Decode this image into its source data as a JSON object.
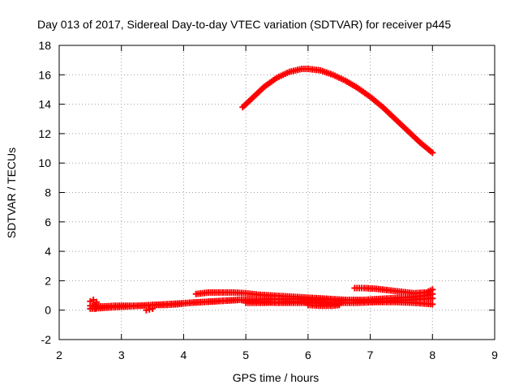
{
  "chart_data": {
    "type": "scatter",
    "title": "Day 013 of 2017, Sidereal Day-to-day VTEC variation (SDTVAR) for receiver p445",
    "xlabel": "GPS time / hours",
    "ylabel": "SDTVAR / TECUs",
    "xlim": [
      2,
      9
    ],
    "ylim": [
      -2,
      18
    ],
    "x_ticks": [
      "2",
      "3",
      "4",
      "5",
      "6",
      "7",
      "8",
      "9"
    ],
    "y_ticks": [
      "-2",
      "0",
      "2",
      "4",
      "6",
      "8",
      "10",
      "12",
      "14",
      "16",
      "18"
    ],
    "grid": true,
    "grid_style": "dotted",
    "marker": "plus",
    "series_color": "#ff0000",
    "series": [
      {
        "x": [
          4.95,
          5.1,
          5.3,
          5.5,
          5.7,
          5.9,
          6.0,
          6.2,
          6.4,
          6.6,
          6.8,
          7.0,
          7.2,
          7.4,
          7.6,
          7.8,
          8.0
        ],
        "y": [
          13.8,
          14.4,
          15.2,
          15.8,
          16.2,
          16.4,
          16.4,
          16.3,
          16.0,
          15.6,
          15.1,
          14.5,
          13.8,
          13.0,
          12.2,
          11.4,
          10.7
        ]
      },
      {
        "x": [
          2.5,
          2.7,
          2.9,
          3.1,
          3.3,
          3.5,
          3.7,
          3.9,
          4.1,
          4.3,
          4.5,
          4.7,
          4.9,
          5.1,
          5.3,
          5.5,
          5.7,
          5.9,
          6.1,
          6.3,
          6.5
        ],
        "y": [
          0.1,
          0.15,
          0.2,
          0.25,
          0.3,
          0.35,
          0.35,
          0.4,
          0.5,
          0.55,
          0.6,
          0.65,
          0.7,
          0.6,
          0.55,
          0.5,
          0.5,
          0.5,
          0.5,
          0.45,
          0.4
        ]
      },
      {
        "x": [
          2.5,
          2.7,
          2.9,
          3.1,
          3.3,
          3.5,
          3.7,
          3.9,
          4.1,
          4.3,
          4.5,
          4.7,
          4.9,
          5.1,
          5.3,
          5.5,
          5.7,
          5.9,
          6.1,
          6.3,
          6.5,
          6.7,
          6.9,
          7.1,
          7.3,
          7.5,
          7.7,
          7.9,
          8.0
        ],
        "y": [
          0.3,
          0.25,
          0.3,
          0.3,
          0.3,
          0.35,
          0.4,
          0.45,
          0.5,
          0.55,
          0.6,
          0.65,
          0.7,
          0.7,
          0.75,
          0.75,
          0.75,
          0.75,
          0.7,
          0.7,
          0.65,
          0.7,
          0.7,
          0.75,
          0.8,
          0.85,
          0.9,
          1.0,
          1.1
        ]
      },
      {
        "x": [
          4.2,
          4.4,
          4.6,
          4.8,
          5.0,
          5.2,
          5.4,
          5.6,
          5.8,
          6.0,
          6.2,
          6.4,
          6.6,
          6.8,
          7.0,
          7.2,
          7.4,
          7.6,
          7.8,
          8.0
        ],
        "y": [
          1.1,
          1.2,
          1.2,
          1.2,
          1.15,
          1.05,
          1.0,
          0.95,
          0.9,
          0.85,
          0.8,
          0.75,
          0.7,
          0.65,
          0.6,
          0.6,
          0.65,
          0.7,
          0.75,
          0.8
        ]
      },
      {
        "x": [
          6.75,
          6.9,
          7.1,
          7.3,
          7.5,
          7.7,
          7.9,
          8.0
        ],
        "y": [
          1.5,
          1.5,
          1.45,
          1.35,
          1.25,
          1.15,
          1.2,
          1.4
        ]
      },
      {
        "x": [
          5.0,
          5.3,
          5.6,
          5.9,
          6.2,
          6.5,
          6.8,
          7.1,
          7.4,
          7.7,
          8.0
        ],
        "y": [
          0.5,
          0.5,
          0.55,
          0.6,
          0.55,
          0.5,
          0.5,
          0.55,
          0.55,
          0.5,
          0.4
        ]
      },
      {
        "x": [
          2.5,
          2.55,
          2.6,
          2.58
        ],
        "y": [
          0.6,
          0.7,
          0.55,
          0.1
        ]
      },
      {
        "x": [
          3.4,
          3.45,
          3.5
        ],
        "y": [
          0.0,
          0.05,
          0.1
        ]
      },
      {
        "x": [
          6.0,
          6.2,
          6.4,
          6.5
        ],
        "y": [
          0.35,
          0.3,
          0.3,
          0.35
        ]
      }
    ]
  }
}
